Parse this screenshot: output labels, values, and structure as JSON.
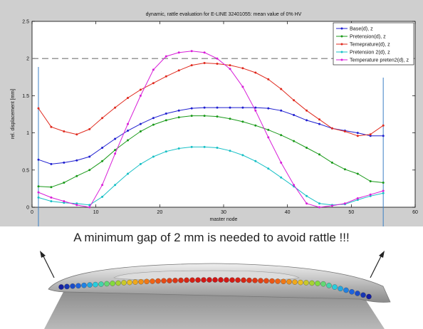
{
  "chart_data": {
    "type": "line",
    "title": "dynamic, rattle evaluation for E-LINE 32401055: mean value of 0% HV",
    "xlabel": "master node",
    "ylabel": "rel. displacement [mm]",
    "xlim": [
      0,
      60
    ],
    "ylim": [
      0,
      2.5
    ],
    "xticks": [
      "0",
      "10",
      "20",
      "30",
      "40",
      "50",
      "60"
    ],
    "yticks": [
      "0",
      "0.5",
      "1",
      "1.5",
      "2",
      "2.5"
    ],
    "grid": false,
    "legend": "top-right",
    "threshold": 2,
    "x": [
      1,
      3,
      5,
      7,
      9,
      11,
      13,
      15,
      17,
      19,
      21,
      23,
      25,
      27,
      29,
      31,
      33,
      35,
      37,
      39,
      41,
      43,
      45,
      47,
      49,
      51,
      53,
      55
    ],
    "series": [
      {
        "name": "Base(d), z",
        "color": "#1f1fd0",
        "values": [
          0.64,
          0.58,
          0.6,
          0.63,
          0.68,
          0.8,
          0.92,
          1.03,
          1.12,
          1.2,
          1.26,
          1.3,
          1.33,
          1.34,
          1.34,
          1.34,
          1.34,
          1.34,
          1.33,
          1.3,
          1.24,
          1.17,
          1.12,
          1.06,
          1.03,
          1.0,
          0.96,
          0.96
        ]
      },
      {
        "name": "Pretension(d), z",
        "color": "#1a9a1a",
        "values": [
          0.28,
          0.27,
          0.33,
          0.42,
          0.5,
          0.62,
          0.77,
          0.9,
          1.02,
          1.11,
          1.17,
          1.21,
          1.23,
          1.23,
          1.22,
          1.19,
          1.15,
          1.1,
          1.04,
          0.97,
          0.89,
          0.8,
          0.71,
          0.6,
          0.51,
          0.45,
          0.35,
          0.33
        ]
      },
      {
        "name": "Temeprature(d), z",
        "color": "#e02a1e",
        "values": [
          1.33,
          1.08,
          1.02,
          0.98,
          1.05,
          1.2,
          1.34,
          1.47,
          1.58,
          1.67,
          1.76,
          1.84,
          1.91,
          1.94,
          1.93,
          1.91,
          1.87,
          1.81,
          1.72,
          1.59,
          1.44,
          1.3,
          1.18,
          1.06,
          1.02,
          0.96,
          0.98,
          1.1
        ]
      },
      {
        "name": "Pretension 2(d), z",
        "color": "#17c0c6",
        "values": [
          0.13,
          0.08,
          0.06,
          0.05,
          0.03,
          0.14,
          0.3,
          0.45,
          0.58,
          0.68,
          0.75,
          0.79,
          0.81,
          0.81,
          0.8,
          0.76,
          0.7,
          0.62,
          0.52,
          0.4,
          0.28,
          0.15,
          0.05,
          0.03,
          0.04,
          0.1,
          0.15,
          0.19
        ]
      },
      {
        "name": "Temperature preten2(d), z",
        "color": "#d81ed8",
        "values": [
          0.2,
          0.13,
          0.08,
          0.03,
          0.0,
          0.3,
          0.72,
          1.12,
          1.5,
          1.85,
          2.03,
          2.08,
          2.1,
          2.08,
          2.0,
          1.86,
          1.62,
          1.3,
          0.94,
          0.6,
          0.3,
          0.05,
          0.0,
          0.02,
          0.05,
          0.12,
          0.17,
          0.22
        ]
      }
    ]
  },
  "caption": "A minimum gap of 2 mm is needed to avoid rattle !!!"
}
